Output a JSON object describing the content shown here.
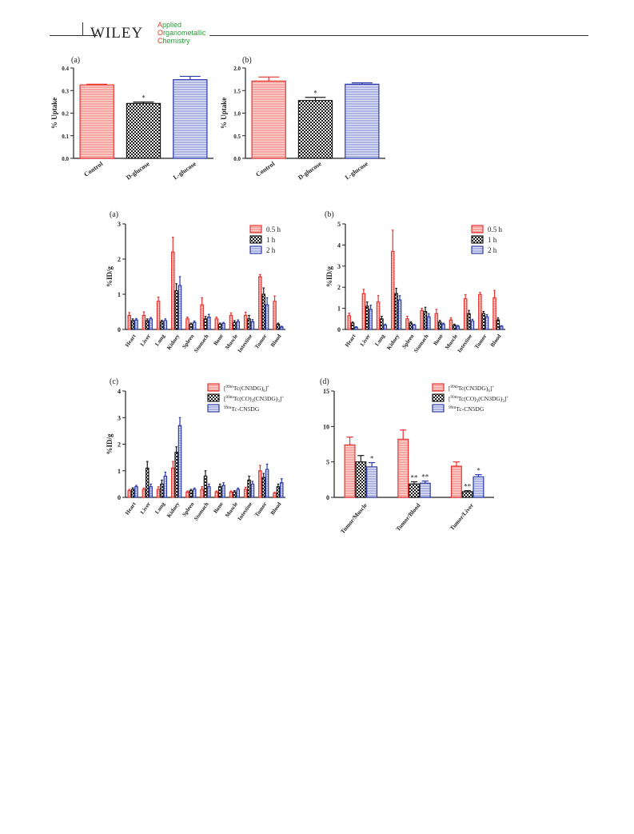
{
  "header": {
    "publisher": "WILEY",
    "journal_lines": [
      {
        "cap": "A",
        "rest": "pplied"
      },
      {
        "cap": "O",
        "rest": "rganometallic"
      },
      {
        "cap": "C",
        "rest": "hemistry"
      }
    ]
  },
  "colors": {
    "red": "#e8332f",
    "red_fill": "#f6a6a0",
    "black": "#1a1a1a",
    "black_fill": "#9a9a9a",
    "blue": "#2a3aa8",
    "blue_fill": "#c9cdf0"
  },
  "chart_data": [
    {
      "panel": "(a)",
      "type": "bar",
      "ylabel": "% Uptake",
      "ylim": [
        0,
        0.4
      ],
      "yticks": [
        "0.0",
        "0.1",
        "0.2",
        "0.3",
        "0.4"
      ],
      "categories": [
        "Control",
        "D-glucose",
        "L-glucose"
      ],
      "values": [
        0.325,
        0.243,
        0.348
      ],
      "errors": [
        0.003,
        0.006,
        0.015
      ],
      "annotations": [
        "",
        "*",
        ""
      ]
    },
    {
      "panel": "(b)",
      "type": "bar",
      "ylabel": "% Uptake",
      "ylim": [
        0,
        2.0
      ],
      "yticks": [
        "0.0",
        "0.5",
        "1.0",
        "1.5",
        "2.0"
      ],
      "categories": [
        "Control",
        "D-glucose",
        "L-glucose"
      ],
      "values": [
        1.71,
        1.28,
        1.64
      ],
      "errors": [
        0.09,
        0.07,
        0.03
      ],
      "annotations": [
        "",
        "*",
        ""
      ]
    },
    {
      "panel": "(a)",
      "type": "bar",
      "ylabel": "%ID/g",
      "ylim": [
        0,
        3
      ],
      "yticks": [
        "0",
        "1",
        "2",
        "3"
      ],
      "categories": [
        "Heart",
        "Liver",
        "Lung",
        "Kidney",
        "Spleen",
        "Stomach",
        "Bone",
        "Muscle",
        "Intestine",
        "Tumor",
        "Blood"
      ],
      "legend": [
        "0.5 h",
        "1 h",
        "2 h"
      ],
      "series": [
        {
          "name": "0.5 h",
          "values": [
            0.4,
            0.4,
            0.8,
            2.2,
            0.3,
            0.7,
            0.3,
            0.4,
            0.4,
            1.5,
            0.8
          ],
          "errors": [
            0.08,
            0.1,
            0.12,
            0.42,
            0.05,
            0.2,
            0.05,
            0.07,
            0.09,
            0.06,
            0.15
          ]
        },
        {
          "name": "1 h",
          "values": [
            0.25,
            0.25,
            0.22,
            1.1,
            0.15,
            0.3,
            0.15,
            0.2,
            0.3,
            1.0,
            0.15
          ],
          "errors": [
            0.05,
            0.05,
            0.04,
            0.2,
            0.03,
            0.07,
            0.03,
            0.05,
            0.1,
            0.18,
            0.03
          ]
        },
        {
          "name": "2 h",
          "values": [
            0.27,
            0.3,
            0.25,
            1.25,
            0.2,
            0.35,
            0.17,
            0.22,
            0.22,
            0.7,
            0.07
          ],
          "errors": [
            0.04,
            0.04,
            0.05,
            0.25,
            0.04,
            0.08,
            0.03,
            0.05,
            0.06,
            0.2,
            0.02
          ]
        }
      ]
    },
    {
      "panel": "(b)",
      "type": "bar",
      "ylabel": "%ID/g",
      "ylim": [
        0,
        5
      ],
      "yticks": [
        "0",
        "1",
        "2",
        "3",
        "4",
        "5"
      ],
      "categories": [
        "Heart",
        "Liver",
        "Lung",
        "Kidney",
        "Spleen",
        "Stomach",
        "Bone",
        "Muscle",
        "Intestine",
        "Tumor",
        "Blood"
      ],
      "legend": [
        "0.5 h",
        "1 h",
        "2 h"
      ],
      "series": [
        {
          "name": "0.5 h",
          "values": [
            0.65,
            1.7,
            1.3,
            3.7,
            0.5,
            0.9,
            0.75,
            0.45,
            1.45,
            1.65,
            1.5
          ],
          "errors": [
            0.12,
            0.2,
            0.3,
            1.0,
            0.12,
            0.1,
            0.2,
            0.1,
            0.2,
            0.1,
            0.35
          ]
        },
        {
          "name": "1 h",
          "values": [
            0.3,
            1.1,
            0.5,
            1.7,
            0.3,
            0.85,
            0.35,
            0.2,
            0.75,
            0.75,
            0.45
          ],
          "errors": [
            0.05,
            0.2,
            0.12,
            0.25,
            0.06,
            0.2,
            0.08,
            0.05,
            0.15,
            0.1,
            0.1
          ]
        },
        {
          "name": "2 h",
          "values": [
            0.1,
            0.95,
            0.2,
            1.4,
            0.2,
            0.6,
            0.25,
            0.15,
            0.4,
            0.6,
            0.15
          ],
          "errors": [
            0.03,
            0.2,
            0.05,
            0.2,
            0.04,
            0.15,
            0.05,
            0.04,
            0.08,
            0.1,
            0.03
          ]
        }
      ]
    },
    {
      "panel": "(c)",
      "type": "bar",
      "ylabel": "%ID/g",
      "ylim": [
        0,
        4
      ],
      "yticks": [
        "0",
        "1",
        "2",
        "3",
        "4"
      ],
      "categories": [
        "Heart",
        "Liver",
        "Lung",
        "Kidney",
        "Spleen",
        "Stomach",
        "Bone",
        "Muscle",
        "Intestine",
        "Tumor",
        "Blood"
      ],
      "legend": [
        "[99mTc(CN3DG)6]+",
        "[99mTc(CO)3(CN3DG)3]+",
        "99mTc-CN5DG"
      ],
      "series": [
        {
          "name": "[99mTc(CN3DG)6]+",
          "values": [
            0.25,
            0.3,
            0.3,
            1.1,
            0.2,
            0.3,
            0.2,
            0.2,
            0.3,
            1.0,
            0.15
          ],
          "errors": [
            0.05,
            0.05,
            0.1,
            0.25,
            0.04,
            0.1,
            0.04,
            0.04,
            0.08,
            0.2,
            0.04
          ]
        },
        {
          "name": "[99mTc(CO)3(CN3DG)3]+",
          "values": [
            0.3,
            1.1,
            0.5,
            1.7,
            0.25,
            0.8,
            0.4,
            0.2,
            0.65,
            0.75,
            0.4
          ],
          "errors": [
            0.06,
            0.25,
            0.15,
            0.2,
            0.05,
            0.2,
            0.1,
            0.05,
            0.15,
            0.15,
            0.1
          ]
        },
        {
          "name": "99mTc-CN5DG",
          "values": [
            0.4,
            0.4,
            0.8,
            2.7,
            0.3,
            0.4,
            0.45,
            0.3,
            0.5,
            1.05,
            0.55
          ],
          "errors": [
            0.05,
            0.1,
            0.15,
            0.3,
            0.05,
            0.1,
            0.1,
            0.05,
            0.1,
            0.2,
            0.15
          ]
        }
      ]
    },
    {
      "panel": "(d)",
      "type": "bar",
      "ylim": [
        0,
        15
      ],
      "yticks": [
        "0",
        "5",
        "10",
        "15"
      ],
      "categories": [
        "Tumor/Muscle",
        "Tumor/Blood",
        "Tumor/Liver"
      ],
      "legend": [
        "[99mTc(CN3DG)6]+",
        "[99mTc(CO)3(CN3DG)3]+",
        "99mTc-CN5DG"
      ],
      "series": [
        {
          "name": "[99mTc(CN3DG)6]+",
          "values": [
            7.4,
            8.2,
            4.4
          ],
          "errors": [
            1.1,
            1.3,
            0.6
          ],
          "annotations": [
            "",
            "",
            ""
          ]
        },
        {
          "name": "[99mTc(CO)3(CN3DG)3]+",
          "values": [
            5.0,
            1.9,
            0.8
          ],
          "errors": [
            0.9,
            0.3,
            0.15
          ],
          "annotations": [
            "",
            "**",
            "**"
          ]
        },
        {
          "name": "99mTc-CN5DG",
          "values": [
            4.3,
            2.0,
            2.9
          ],
          "errors": [
            0.6,
            0.3,
            0.3
          ],
          "annotations": [
            "*",
            "**",
            "*"
          ]
        }
      ]
    }
  ]
}
